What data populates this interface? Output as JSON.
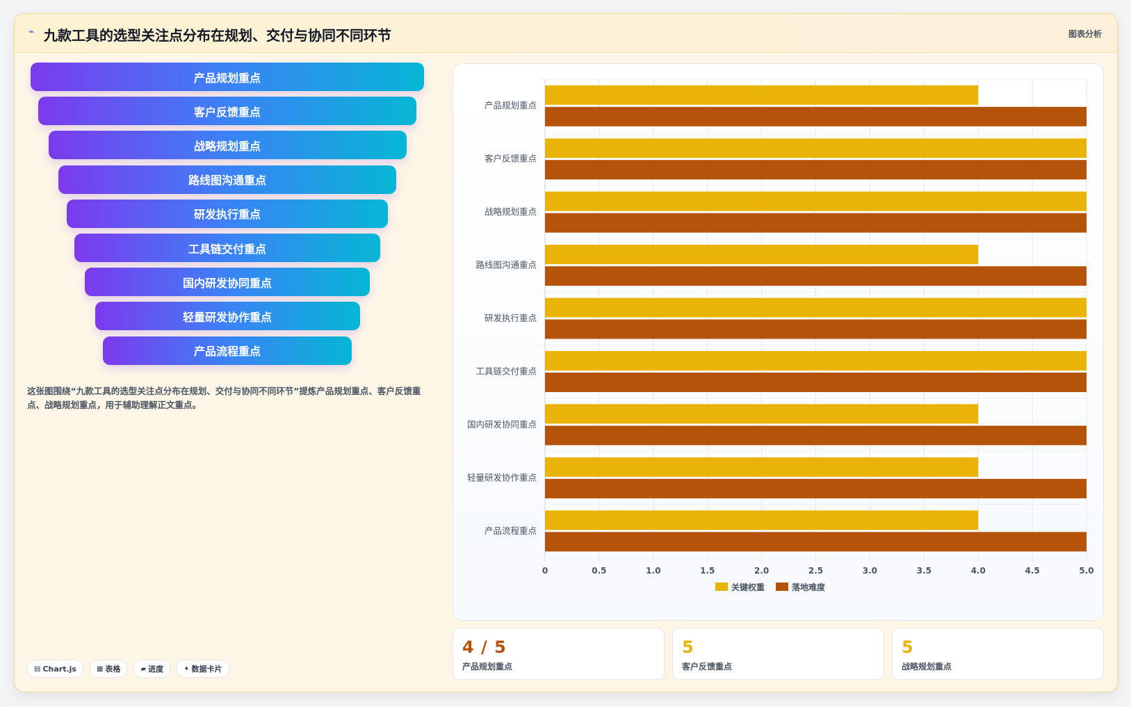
{
  "header": {
    "icon": "chart-line-icon",
    "title": "九款工具的选型关注点分布在规划、交付与协同不同环节",
    "tag": "图表分析"
  },
  "funnel": {
    "stages": [
      "产品规划重点",
      "客户反馈重点",
      "战略规划重点",
      "路线图沟通重点",
      "研发执行重点",
      "工具链交付重点",
      "国内研发协同重点",
      "轻量研发协作重点",
      "产品流程重点"
    ],
    "gradient": [
      "#7c3aed",
      "#3b82f6",
      "#06b6d4"
    ]
  },
  "description": "这张图围绕“九款工具的选型关注点分布在规划、交付与协同不同环节”提炼产品规划重点、客户反馈重点、战略规划重点，用于辅助理解正文重点。",
  "chips": [
    {
      "icon": "chart-icon",
      "glyph": "▤",
      "label": "Chart.js"
    },
    {
      "icon": "table-icon",
      "glyph": "▦",
      "label": "表格"
    },
    {
      "icon": "progress-icon",
      "glyph": "▰",
      "label": "进度"
    },
    {
      "icon": "data-card-icon",
      "glyph": "✦",
      "label": "数据卡片"
    }
  ],
  "chart_data": {
    "type": "bar",
    "orientation": "horizontal",
    "categories": [
      "产品规划重点",
      "客户反馈重点",
      "战略规划重点",
      "路线图沟通重点",
      "研发执行重点",
      "工具链交付重点",
      "国内研发协同重点",
      "轻量研发协作重点",
      "产品流程重点"
    ],
    "series": [
      {
        "name": "关键权重",
        "color": "#eab308",
        "values": [
          4,
          5,
          5,
          4,
          5,
          5,
          4,
          4,
          4
        ]
      },
      {
        "name": "落地难度",
        "color": "#b45309",
        "values": [
          5,
          5,
          5,
          5,
          5,
          5,
          5,
          5,
          5
        ]
      }
    ],
    "xlim": [
      0,
      5
    ],
    "xticks": [
      "0",
      "0.5",
      "1.0",
      "1.5",
      "2.0",
      "2.5",
      "3.0",
      "3.5",
      "4.0",
      "4.5",
      "5.0"
    ],
    "grid": true,
    "legend": "bottom"
  },
  "stats": [
    {
      "value": "4 / 5",
      "label": "产品规划重点",
      "color": "#b45309"
    },
    {
      "value": "5",
      "label": "客户反馈重点",
      "color": "#eab308"
    },
    {
      "value": "5",
      "label": "战略规划重点",
      "color": "#eab308"
    }
  ]
}
